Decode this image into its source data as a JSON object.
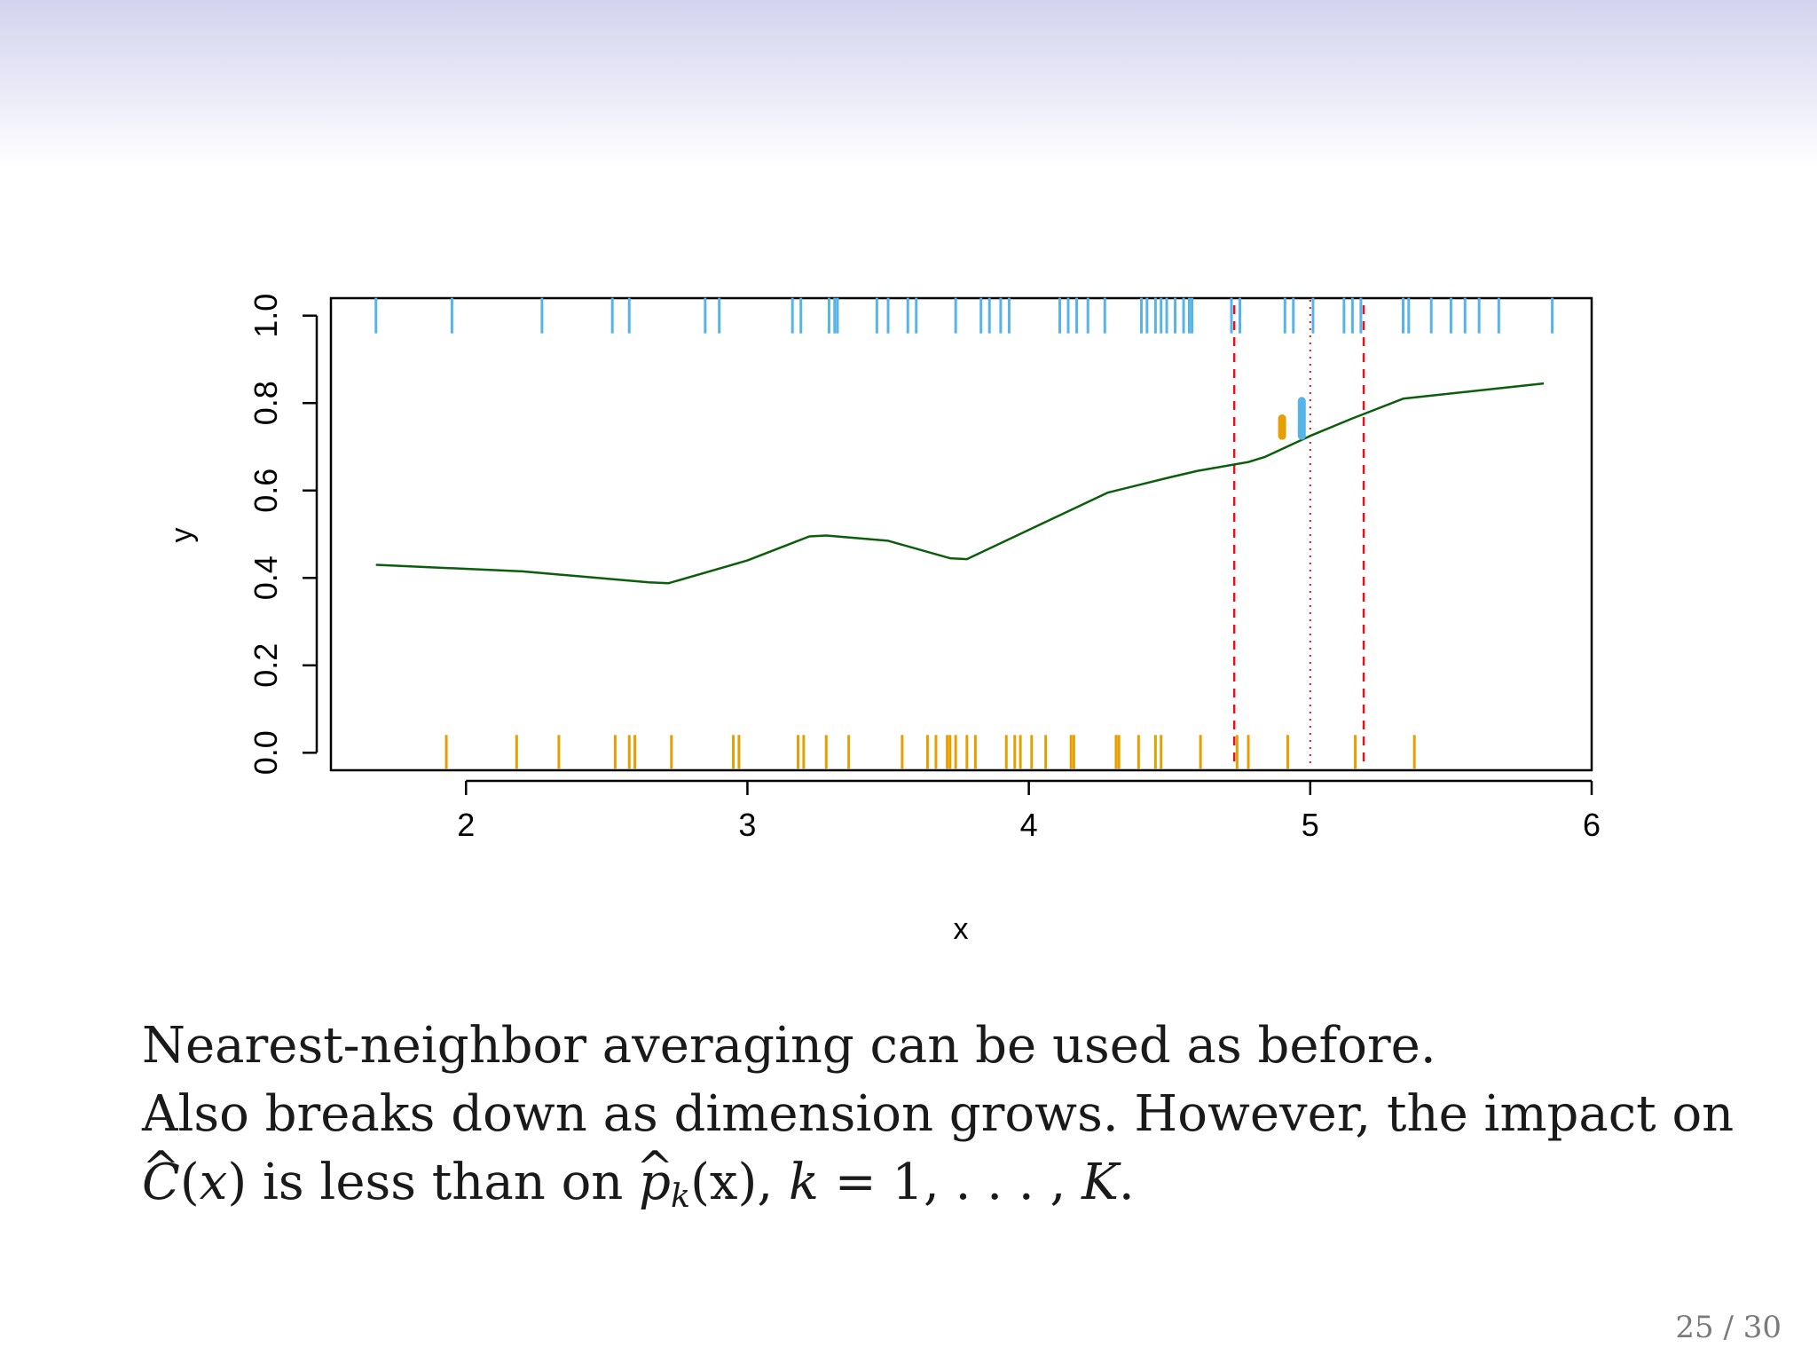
{
  "slide": {
    "page_number": "25 / 30",
    "text_line1": "Nearest-neighbor averaging can be used as before.",
    "text_line2": "Also breaks down as dimension grows. However, the impact on",
    "text_line3": {
      "c_hat": "C",
      "hat": "^",
      "arg_open": "(",
      "arg_var": "x",
      "arg_close": ")",
      "middle": " is less than on ",
      "p_hat": "p",
      "p_sub": "k",
      "p_arg": "(x), ",
      "k_var": "k",
      "k_rest": " = 1, . . . , ",
      "K_var": "K",
      "end": "."
    },
    "colors": {
      "background_band": "#d3d3ef",
      "text": "#1a1a1a",
      "page_number": "#7a7a7a"
    }
  },
  "chart_data": {
    "type": "line",
    "xlabel": "x",
    "ylabel": "y",
    "xlim": [
      1.52,
      6.0
    ],
    "ylim": [
      -0.04,
      1.04
    ],
    "xticks": [
      2,
      3,
      4,
      5,
      6
    ],
    "xtick_labels": [
      "2",
      "3",
      "4",
      "5",
      "6"
    ],
    "yticks": [
      0.0,
      0.2,
      0.4,
      0.6,
      0.8,
      1.0
    ],
    "ytick_labels": [
      "0.0",
      "0.2",
      "0.4",
      "0.6",
      "0.8",
      "1.0"
    ],
    "grid": false,
    "colors": {
      "curve": "#0b5e0b",
      "class1_rug": "#56b4e9",
      "class0_rug": "#e69f00",
      "bounds": "#e0141e",
      "axis": "#000000"
    },
    "curve": {
      "x": [
        1.68,
        2.2,
        2.65,
        2.72,
        3.0,
        3.22,
        3.28,
        3.5,
        3.72,
        3.78,
        4.0,
        4.28,
        4.5,
        4.6,
        4.78,
        4.84,
        5.0,
        5.15,
        5.33,
        5.83
      ],
      "y": [
        0.43,
        0.415,
        0.39,
        0.388,
        0.44,
        0.495,
        0.497,
        0.485,
        0.445,
        0.443,
        0.51,
        0.595,
        0.63,
        0.645,
        0.665,
        0.677,
        0.725,
        0.765,
        0.81,
        0.845
      ]
    },
    "rug_class1": {
      "y": 1.0,
      "x": [
        1.68,
        1.95,
        2.27,
        2.52,
        2.58,
        2.85,
        2.9,
        3.16,
        3.19,
        3.29,
        3.31,
        3.32,
        3.46,
        3.5,
        3.57,
        3.6,
        3.74,
        3.83,
        3.86,
        3.9,
        3.93,
        4.11,
        4.14,
        4.17,
        4.21,
        4.27,
        4.4,
        4.42,
        4.45,
        4.47,
        4.49,
        4.52,
        4.55,
        4.57,
        4.58,
        4.72,
        4.75,
        4.91,
        4.94,
        5.01,
        5.12,
        5.15,
        5.18,
        5.33,
        5.35,
        5.43,
        5.5,
        5.55,
        5.6,
        5.67,
        5.86
      ]
    },
    "rug_class0": {
      "y": 0.0,
      "x": [
        1.93,
        2.18,
        2.33,
        2.53,
        2.58,
        2.6,
        2.73,
        2.95,
        2.97,
        3.18,
        3.2,
        3.28,
        3.36,
        3.55,
        3.64,
        3.67,
        3.71,
        3.72,
        3.74,
        3.78,
        3.81,
        3.92,
        3.95,
        3.97,
        4.01,
        4.06,
        4.15,
        4.16,
        4.31,
        4.32,
        4.39,
        4.45,
        4.47,
        4.61,
        4.74,
        4.78,
        4.92,
        5.16,
        5.37
      ]
    },
    "neighborhood": {
      "target_x": 5.0,
      "lower_bound_x": 4.73,
      "upper_bound_x": 5.19
    },
    "estimates": [
      {
        "class": "0",
        "x": 4.9,
        "y_from": 0.725,
        "y_to": 0.765
      },
      {
        "class": "1",
        "x": 4.97,
        "y_from": 0.725,
        "y_to": 0.805
      }
    ]
  }
}
